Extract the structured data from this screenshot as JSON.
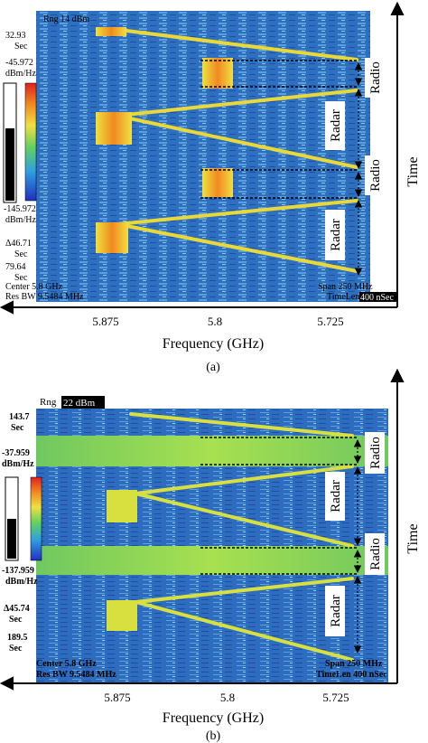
{
  "panels": [
    {
      "id": "a",
      "caption": "(a)",
      "rng_label": "Rng 14 dBm",
      "time_start": {
        "value": "32.93",
        "unit": "Sec"
      },
      "db_top": {
        "value": "-45.972",
        "unit": "dBm/Hz"
      },
      "db_bottom": {
        "value": "-145.972",
        "unit": "dBm/Hz"
      },
      "delta_time": {
        "value": "Δ46.71",
        "unit": "Sec"
      },
      "time_end": {
        "value": "79.64",
        "unit": "Sec"
      },
      "center": "Center 5.8 GHz",
      "res_bw": "Res BW 9.5484 MHz",
      "span": "Span 250 MHz",
      "timelen_prefix": "TimeLen",
      "timelen_value": "400 nSec",
      "ticks": [
        "5.875",
        "5.8",
        "5.725"
      ],
      "xlabel": "Frequency (GHz)",
      "ylabel": "Time",
      "annotations": [
        "Radio",
        "Radar",
        "Radio",
        "Radar"
      ]
    },
    {
      "id": "b",
      "caption": "(b)",
      "rng_prefix": "Rng",
      "rng_value": "22 dBm",
      "time_start": {
        "value": "143.7",
        "unit": "Sec"
      },
      "db_top": {
        "value": "-37.959",
        "unit": "dBm/Hz"
      },
      "db_bottom": {
        "value": "-137.959",
        "unit": "dBm/Hz"
      },
      "delta_time": {
        "value": "Δ45.74",
        "unit": "Sec"
      },
      "time_end": {
        "value": "189.5",
        "unit": "Sec"
      },
      "center": "Center 5.8 GHz",
      "res_bw": "Res BW 9.5484 MHz",
      "span": "Span 250 MHz",
      "timelen": "TimeLen 400 nSec",
      "ticks": [
        "5.875",
        "5.8",
        "5.725"
      ],
      "xlabel": "Frequency (GHz)",
      "ylabel": "Time",
      "annotations": [
        "Radio",
        "Radar",
        "Radio",
        "Radar"
      ]
    }
  ],
  "colors": {
    "background_blue": "#2f6fc0",
    "signal_yellow": "#f0e040",
    "signal_orange": "#f08a20",
    "signal_green": "#7fd060"
  }
}
